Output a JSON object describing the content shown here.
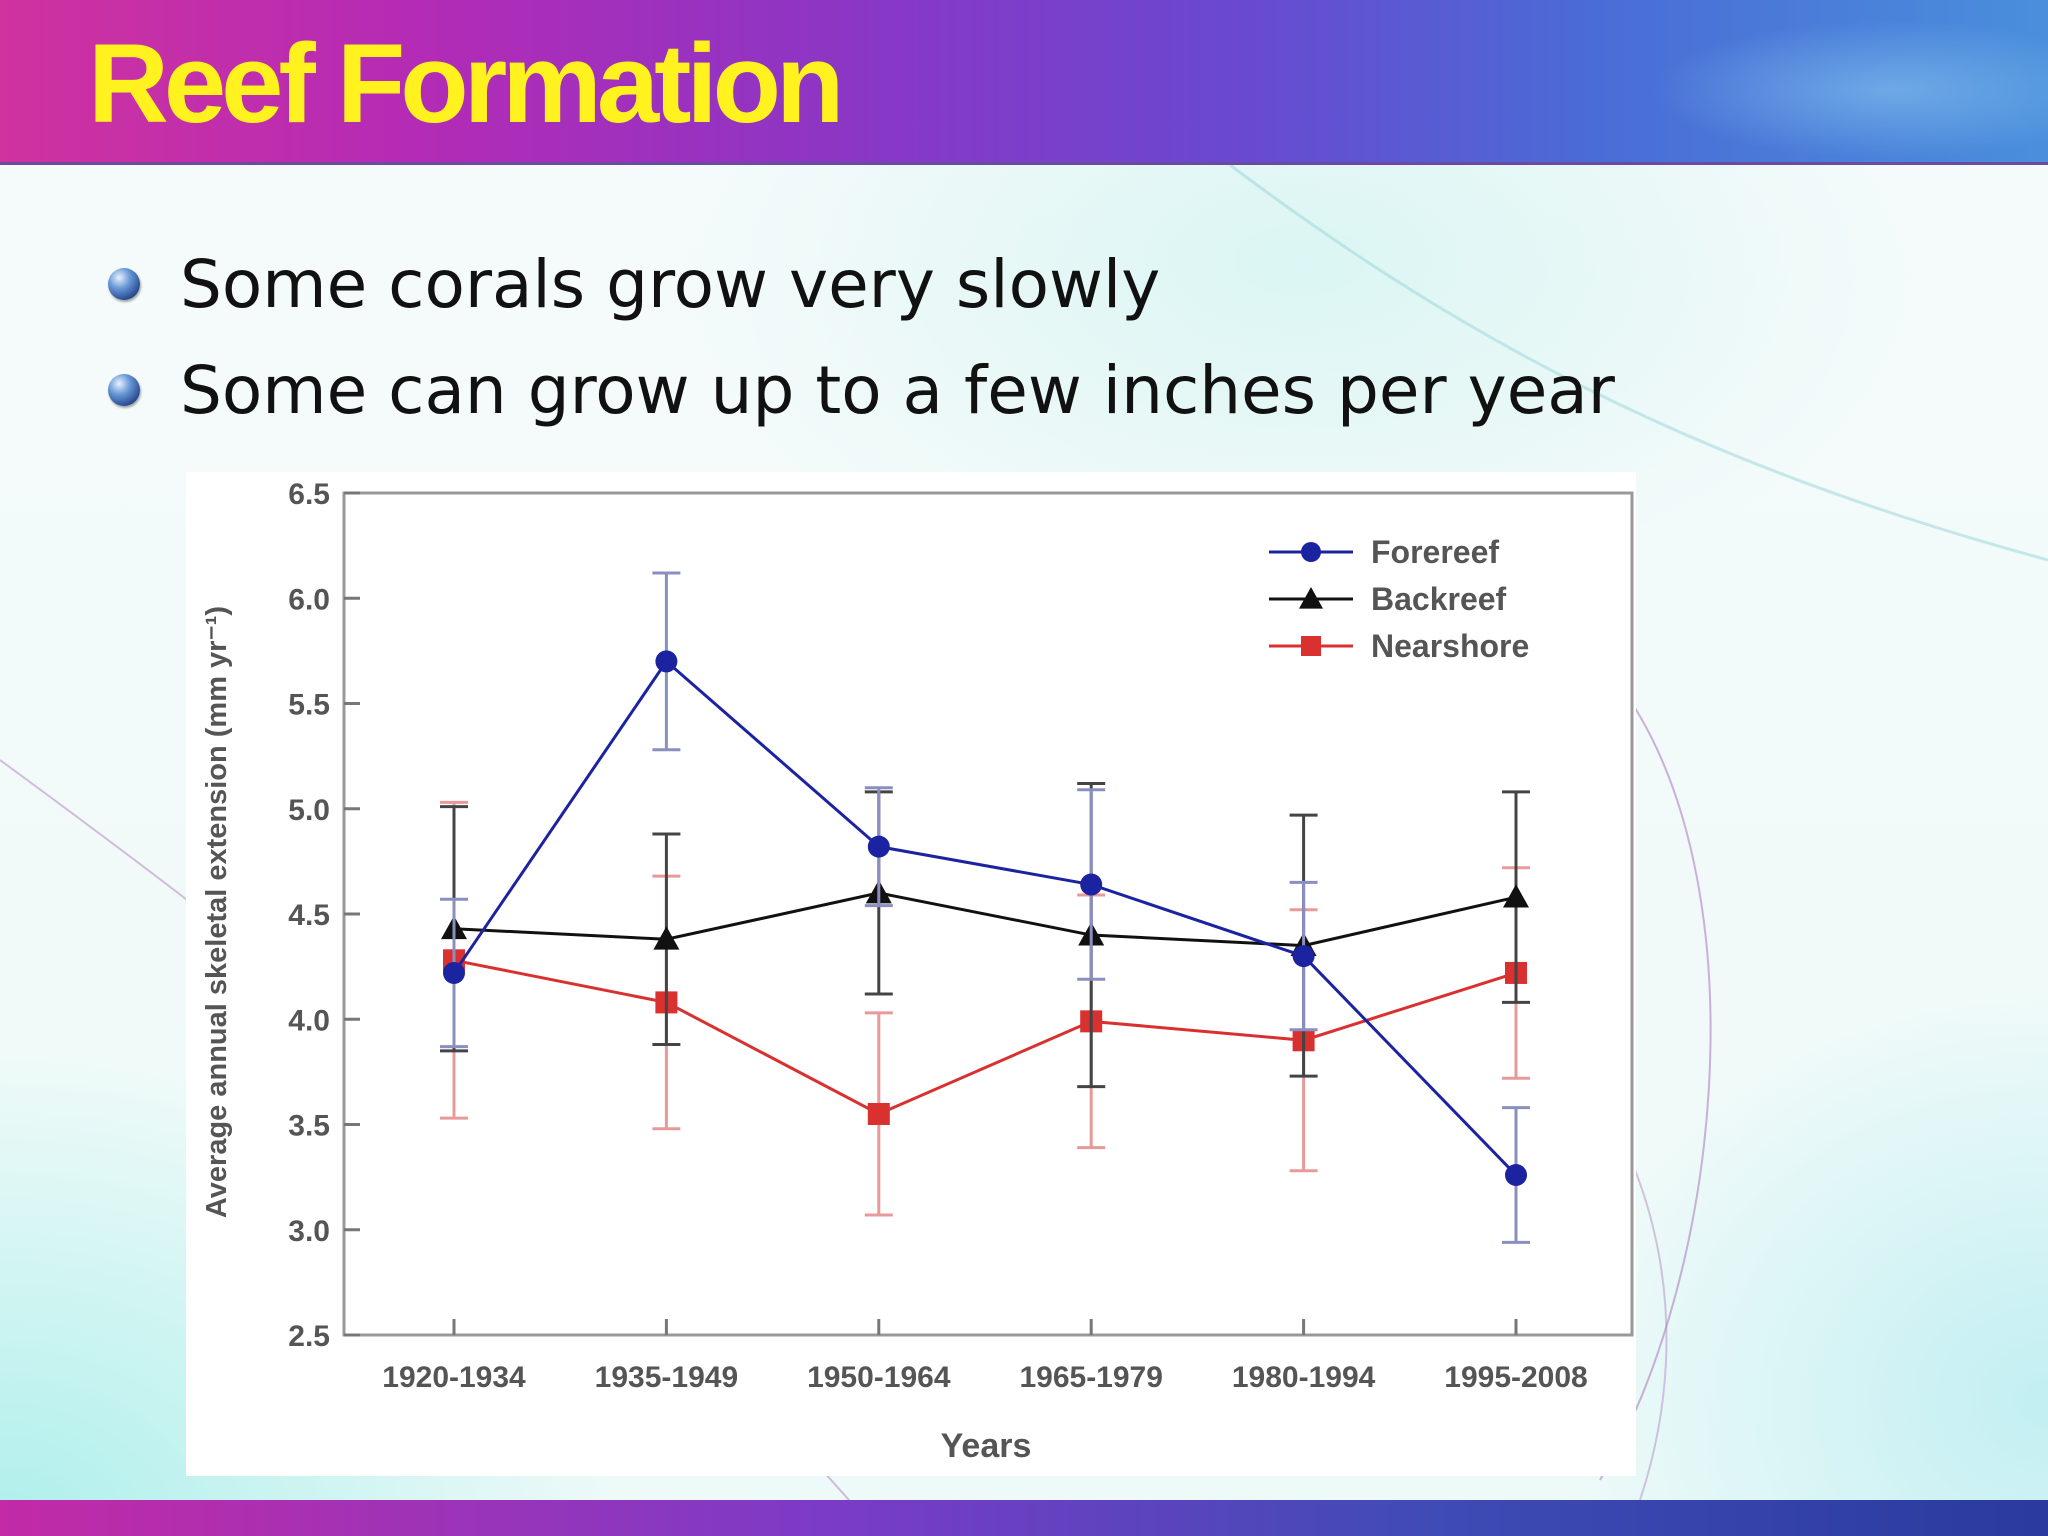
{
  "slide": {
    "title": "Reef Formation",
    "bullets": [
      "Some corals grow very slowly",
      "Some can grow up to a few inches per year"
    ]
  },
  "colors": {
    "title_text": "#fff21e",
    "forereef": "#1c23a0",
    "backreef": "#111111",
    "nearshore": "#d93030"
  },
  "chart_data": {
    "type": "line",
    "categories": [
      "1920-1934",
      "1935-1949",
      "1950-1964",
      "1965-1979",
      "1980-1994",
      "1995-2008"
    ],
    "xlabel": "Years",
    "ylabel": "Average annual skeletal extension (mm yr⁻¹)",
    "ylim": [
      2.5,
      6.5
    ],
    "yticks": [
      "2.5",
      "3.0",
      "3.5",
      "4.0",
      "4.5",
      "5.0",
      "5.5",
      "6.0",
      "6.5"
    ],
    "legend_position": "top-right",
    "grid": false,
    "series": [
      {
        "name": "Forereef",
        "marker": "circle",
        "values": [
          4.22,
          5.7,
          4.82,
          4.64,
          4.3,
          3.26
        ],
        "error": [
          0.35,
          0.42,
          0.28,
          0.45,
          0.35,
          0.32
        ]
      },
      {
        "name": "Backreef",
        "marker": "triangle",
        "values": [
          4.43,
          4.38,
          4.6,
          4.4,
          4.35,
          4.58
        ],
        "error": [
          0.58,
          0.5,
          0.48,
          0.72,
          0.62,
          0.5
        ]
      },
      {
        "name": "Nearshore",
        "marker": "square",
        "values": [
          4.28,
          4.08,
          3.55,
          3.99,
          3.9,
          4.22
        ],
        "error": [
          0.75,
          0.6,
          0.48,
          0.6,
          0.62,
          0.5
        ]
      }
    ]
  }
}
